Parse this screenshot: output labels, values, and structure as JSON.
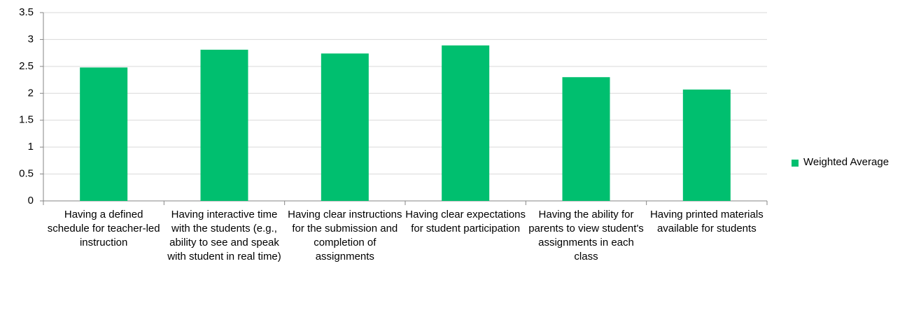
{
  "chart_data": {
    "type": "bar",
    "categories": [
      "Having a defined schedule for teacher-led instruction",
      "Having interactive time with the students (e.g., ability to see and speak with student in real time)",
      "Having clear instructions for the submission and completion of assignments",
      "Having clear expectations for student participation",
      "Having the ability for parents to view student's assignments in each class",
      "Having printed materials available for students"
    ],
    "series": [
      {
        "name": "Weighted Average",
        "color": "#00bf6f",
        "values": [
          2.48,
          2.81,
          2.74,
          2.89,
          2.3,
          2.07
        ]
      }
    ],
    "ylim": [
      0,
      3.5
    ],
    "yticks": [
      0,
      0.5,
      1,
      1.5,
      2,
      2.5,
      3,
      3.5
    ],
    "grid": true,
    "legend": "right"
  }
}
